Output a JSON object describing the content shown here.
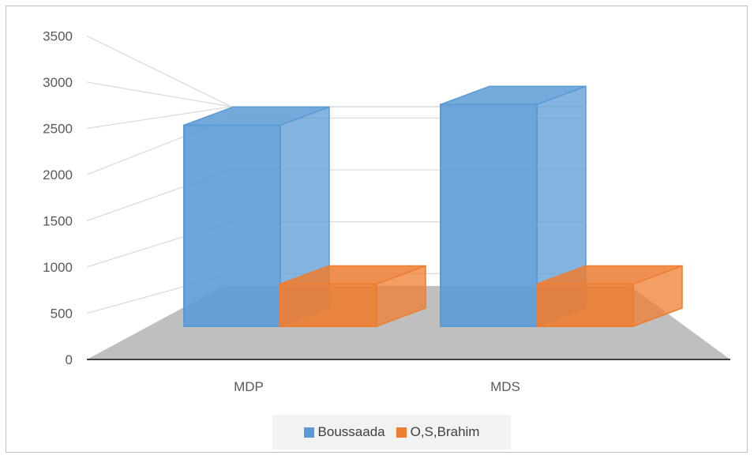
{
  "chart_data": {
    "type": "bar",
    "style": "3d-clustered-column",
    "categories": [
      "MDP",
      "MDS"
    ],
    "series": [
      {
        "name": "Boussaada",
        "values": [
          2520,
          2780
        ],
        "color": "#5b9bd5"
      },
      {
        "name": "O,S,Brahim",
        "values": [
          530,
          530
        ],
        "color": "#ed7d31"
      }
    ],
    "y_ticks": [
      "0",
      "500",
      "1000",
      "1500",
      "2000",
      "2500",
      "3000",
      "3500"
    ],
    "ylim": [
      0,
      3500
    ],
    "legend_position": "bottom",
    "grid": true,
    "floor_color": "#bfbfbf"
  }
}
